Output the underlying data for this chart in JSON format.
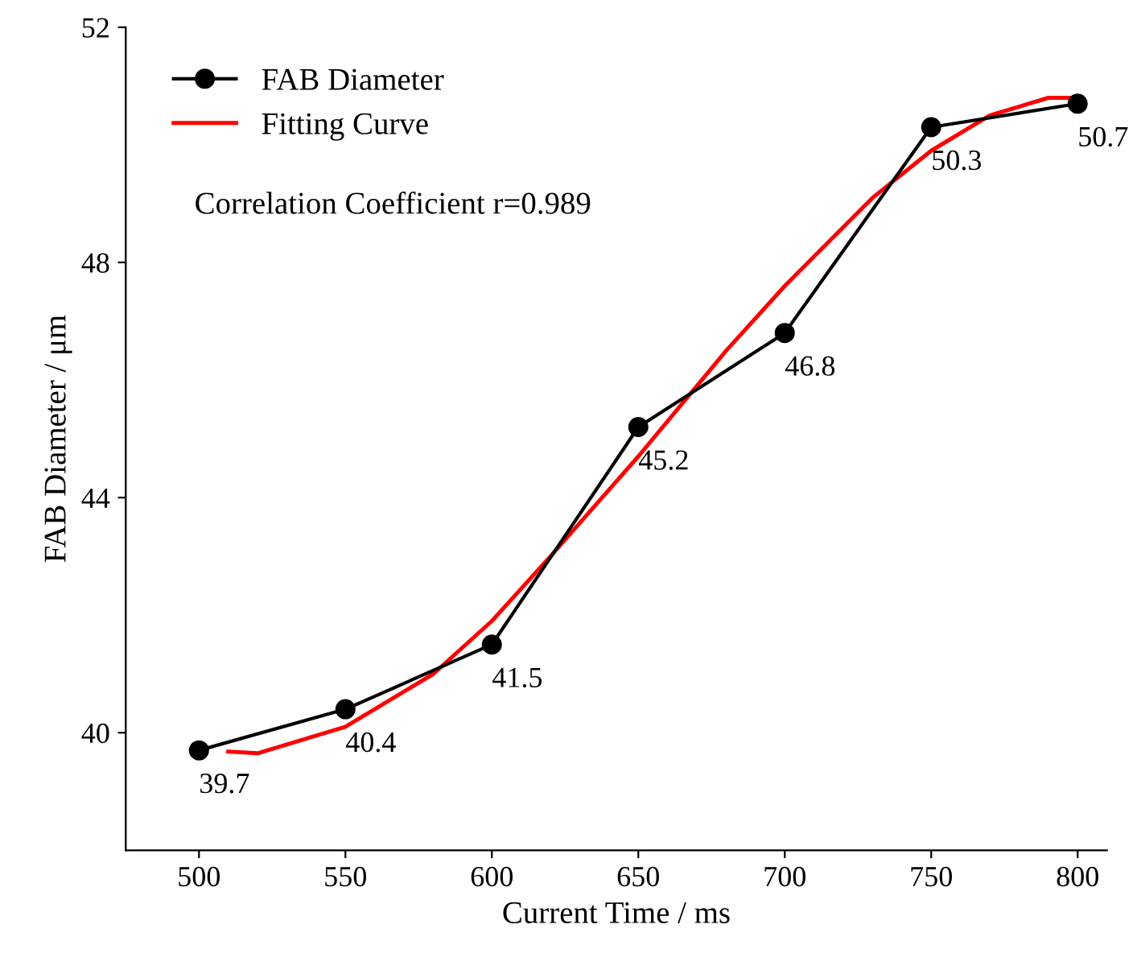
{
  "chart_data": {
    "type": "line",
    "xlabel": "Current Time / ms",
    "ylabel": "FAB Diameter / μm",
    "xlim": [
      475,
      810
    ],
    "xticks": [
      500,
      550,
      600,
      650,
      700,
      750,
      800
    ],
    "ylim": [
      38,
      52
    ],
    "yticks": [
      40,
      44,
      48,
      52
    ],
    "grid": false,
    "legend": "top left",
    "annotations": [
      "Correlation Coefficient r=0.989"
    ],
    "series": [
      {
        "name": "FAB Diameter",
        "color": "#000000",
        "marker": "circle",
        "data_labels": true,
        "x": [
          500,
          550,
          600,
          650,
          700,
          750,
          800
        ],
        "values": [
          39.7,
          40.4,
          41.5,
          45.2,
          46.8,
          50.3,
          50.7
        ]
      },
      {
        "name": "Fitting Curve",
        "color": "#ff0000",
        "marker": "none",
        "x": [
          510,
          520,
          550,
          580,
          600,
          620,
          650,
          680,
          700,
          730,
          750,
          770,
          790,
          800
        ],
        "values": [
          39.68,
          39.65,
          40.1,
          41.0,
          41.9,
          43.0,
          44.7,
          46.5,
          47.6,
          49.1,
          49.9,
          50.5,
          50.8,
          50.8
        ]
      }
    ]
  }
}
